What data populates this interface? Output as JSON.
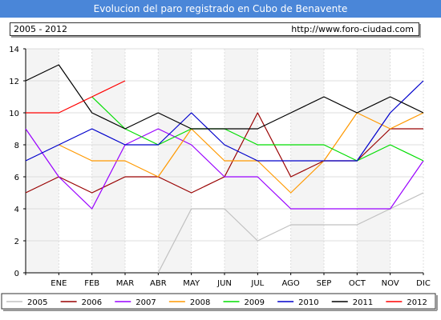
{
  "header": {
    "title": "Evolucion del paro registrado en Cubo de Benavente",
    "period": "2005 - 2012",
    "url": "http://www.foro-ciudad.com"
  },
  "chart_data": {
    "type": "line",
    "title": "Evolucion del paro registrado en Cubo de Benavente",
    "xlabel": "",
    "ylabel": "",
    "x_labels": [
      "",
      "ENE",
      "FEB",
      "MAR",
      "ABR",
      "MAY",
      "JUN",
      "JUL",
      "AGO",
      "SEP",
      "OCT",
      "NOV",
      "DIC"
    ],
    "ylim": [
      0,
      14
    ],
    "y_ticks": [
      0,
      2,
      4,
      6,
      8,
      10,
      12,
      14
    ],
    "grid": true,
    "legend_position": "bottom",
    "series": [
      {
        "name": "2005",
        "color": "#c0c0c0",
        "values": [
          null,
          null,
          null,
          null,
          0,
          4,
          4,
          2,
          3,
          3,
          3,
          4,
          5
        ]
      },
      {
        "name": "2006",
        "color": "#990000",
        "values": [
          5,
          6,
          5,
          6,
          6,
          5,
          6,
          10,
          6,
          7,
          7,
          9,
          9
        ]
      },
      {
        "name": "2007",
        "color": "#9900ff",
        "values": [
          9,
          6,
          4,
          8,
          9,
          8,
          6,
          6,
          4,
          4,
          4,
          4,
          7
        ]
      },
      {
        "name": "2008",
        "color": "#ff9900",
        "values": [
          null,
          8,
          7,
          7,
          6,
          9,
          7,
          7,
          5,
          7,
          10,
          9,
          10
        ]
      },
      {
        "name": "2009",
        "color": "#00dd00",
        "values": [
          null,
          null,
          11,
          9,
          8,
          9,
          9,
          8,
          8,
          8,
          7,
          8,
          7
        ]
      },
      {
        "name": "2010",
        "color": "#0000cc",
        "values": [
          7,
          8,
          9,
          8,
          8,
          10,
          8,
          7,
          7,
          7,
          7,
          10,
          12
        ]
      },
      {
        "name": "2011",
        "color": "#000000",
        "values": [
          12,
          13,
          10,
          9,
          10,
          9,
          9,
          9,
          10,
          11,
          10,
          11,
          10
        ]
      },
      {
        "name": "2012",
        "color": "#ff0000",
        "values": [
          10,
          10,
          11,
          12,
          null,
          null,
          null,
          null,
          null,
          null,
          null,
          null,
          null
        ]
      }
    ]
  }
}
